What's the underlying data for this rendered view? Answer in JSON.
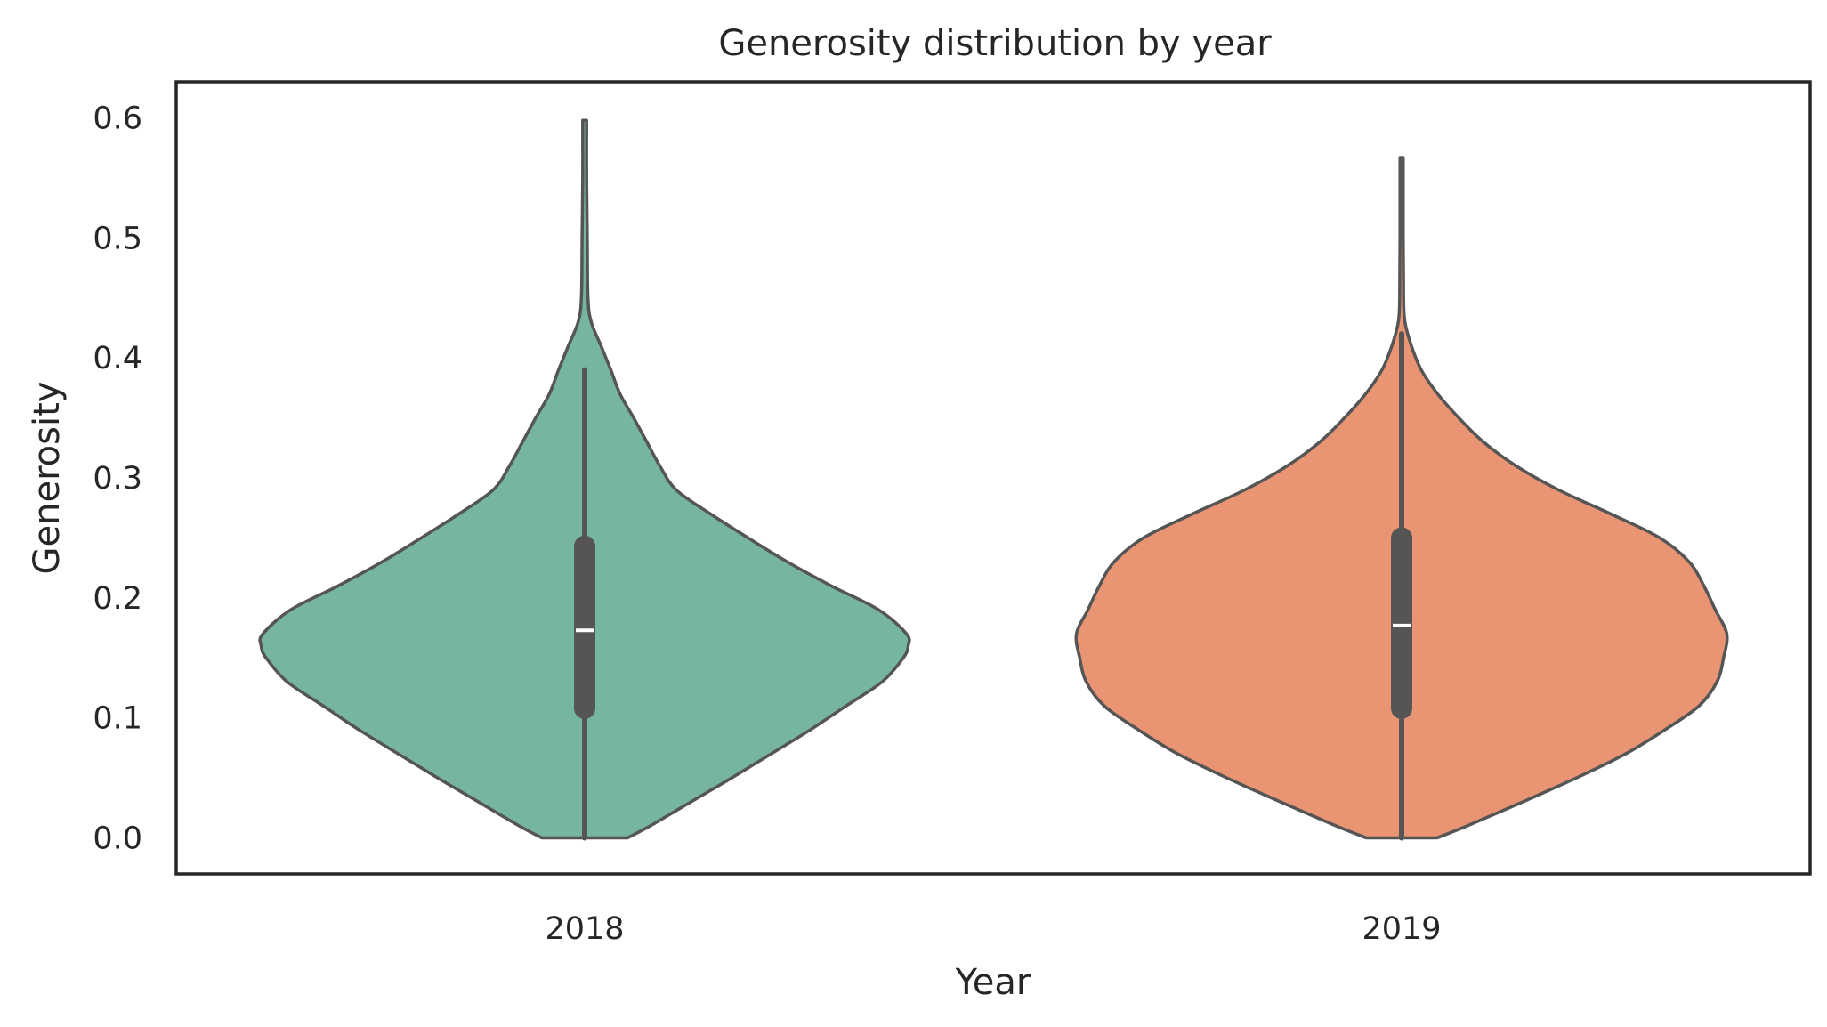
{
  "chart_data": {
    "type": "violin",
    "title": "Generosity distribution by year",
    "xlabel": "Year",
    "ylabel": "Generosity",
    "ylim": [
      -0.03,
      0.63
    ],
    "yticks": [
      0.0,
      0.1,
      0.2,
      0.3,
      0.4,
      0.5,
      0.6
    ],
    "ytick_labels": [
      "0.0",
      "0.1",
      "0.2",
      "0.3",
      "0.4",
      "0.5",
      "0.6"
    ],
    "grid": false,
    "legend": "none",
    "categories": [
      "2018",
      "2019"
    ],
    "colors": {
      "2018": "#75b5a1",
      "2019": "#e99574",
      "outline": "#555555",
      "box": "#555555",
      "median": "#ffffff",
      "frame": "#262626"
    },
    "violins": [
      {
        "category": "2018",
        "min": 0.0,
        "max": 0.598,
        "q1": 0.108,
        "median": 0.173,
        "q3": 0.243,
        "whisker_low": 0.0,
        "whisker_high": 0.39,
        "profile": [
          [
            0.0,
            0.131
          ],
          [
            0.01,
            0.2
          ],
          [
            0.03,
            0.325
          ],
          [
            0.05,
            0.45
          ],
          [
            0.07,
            0.57
          ],
          [
            0.09,
            0.69
          ],
          [
            0.11,
            0.8
          ],
          [
            0.13,
            0.91
          ],
          [
            0.15,
            0.975
          ],
          [
            0.16,
            0.99
          ],
          [
            0.17,
            0.985
          ],
          [
            0.19,
            0.9
          ],
          [
            0.21,
            0.755
          ],
          [
            0.23,
            0.62
          ],
          [
            0.25,
            0.5
          ],
          [
            0.27,
            0.385
          ],
          [
            0.29,
            0.28
          ],
          [
            0.31,
            0.23
          ],
          [
            0.33,
            0.19
          ],
          [
            0.35,
            0.15
          ],
          [
            0.37,
            0.108
          ],
          [
            0.39,
            0.08
          ],
          [
            0.41,
            0.05
          ],
          [
            0.43,
            0.02
          ],
          [
            0.45,
            0.01
          ],
          [
            0.5,
            0.008
          ],
          [
            0.55,
            0.006
          ],
          [
            0.598,
            0.006
          ]
        ]
      },
      {
        "category": "2019",
        "min": 0.0,
        "max": 0.567,
        "q1": 0.108,
        "median": 0.177,
        "q3": 0.25,
        "whisker_low": 0.0,
        "whisker_high": 0.42,
        "profile": [
          [
            0.0,
            0.108
          ],
          [
            0.01,
            0.2
          ],
          [
            0.03,
            0.37
          ],
          [
            0.05,
            0.535
          ],
          [
            0.07,
            0.685
          ],
          [
            0.09,
            0.805
          ],
          [
            0.11,
            0.91
          ],
          [
            0.13,
            0.965
          ],
          [
            0.15,
            0.985
          ],
          [
            0.17,
            0.995
          ],
          [
            0.19,
            0.96
          ],
          [
            0.21,
            0.925
          ],
          [
            0.23,
            0.88
          ],
          [
            0.25,
            0.79
          ],
          [
            0.27,
            0.64
          ],
          [
            0.29,
            0.48
          ],
          [
            0.31,
            0.35
          ],
          [
            0.33,
            0.25
          ],
          [
            0.35,
            0.175
          ],
          [
            0.37,
            0.11
          ],
          [
            0.39,
            0.06
          ],
          [
            0.41,
            0.03
          ],
          [
            0.43,
            0.01
          ],
          [
            0.45,
            0.006
          ],
          [
            0.5,
            0.005
          ],
          [
            0.567,
            0.005
          ]
        ]
      }
    ]
  }
}
